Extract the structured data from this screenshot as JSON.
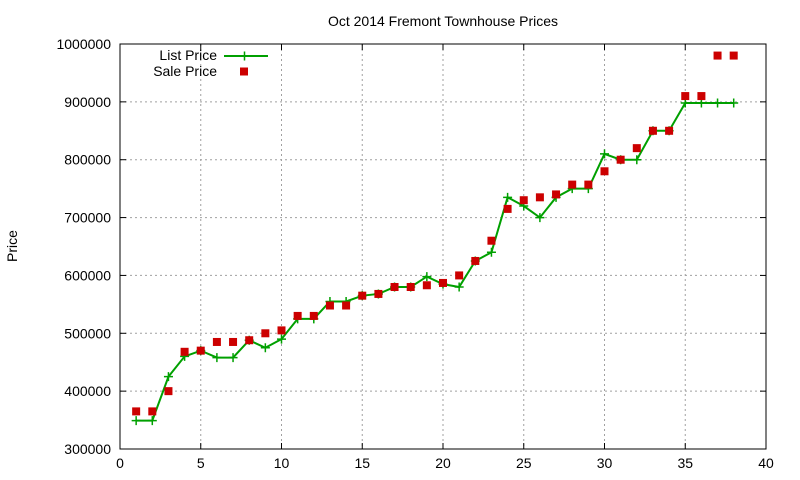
{
  "chart_data": {
    "type": "line",
    "title": "Oct 2014 Fremont Townhouse Prices",
    "xlabel": "",
    "ylabel": "Price",
    "xlim": [
      0,
      40
    ],
    "ylim": [
      300000,
      1000000
    ],
    "xticks": [
      0,
      5,
      10,
      15,
      20,
      25,
      30,
      35,
      40
    ],
    "yticks": [
      300000,
      400000,
      500000,
      600000,
      700000,
      800000,
      900000,
      1000000
    ],
    "grid": true,
    "legend_position": "top-left",
    "series": [
      {
        "name": "List Price",
        "style": "line with plus markers",
        "color": "#00a000",
        "x": [
          1,
          2,
          3,
          4,
          5,
          6,
          7,
          8,
          9,
          10,
          11,
          12,
          13,
          14,
          15,
          16,
          17,
          18,
          19,
          20,
          21,
          22,
          23,
          24,
          25,
          26,
          27,
          28,
          29,
          30,
          31,
          32,
          33,
          34,
          35,
          36,
          37,
          38
        ],
        "y": [
          349000,
          349000,
          425000,
          460000,
          470000,
          458000,
          458000,
          488000,
          475000,
          490000,
          525000,
          525000,
          555000,
          555000,
          565000,
          568000,
          580000,
          580000,
          598000,
          585000,
          580000,
          625000,
          640000,
          735000,
          720000,
          700000,
          735000,
          750000,
          750000,
          810000,
          800000,
          800000,
          850000,
          850000,
          898000,
          898000,
          898000,
          898000
        ]
      },
      {
        "name": "Sale Price",
        "style": "square markers",
        "color": "#cc0000",
        "x": [
          1,
          2,
          3,
          4,
          5,
          6,
          7,
          8,
          9,
          10,
          11,
          12,
          13,
          14,
          15,
          16,
          17,
          18,
          19,
          20,
          21,
          22,
          23,
          24,
          25,
          26,
          27,
          28,
          29,
          30,
          31,
          32,
          33,
          34,
          35,
          36,
          37,
          38
        ],
        "y": [
          365000,
          365000,
          400000,
          468000,
          470000,
          485000,
          485000,
          488000,
          500000,
          505000,
          530000,
          530000,
          548000,
          548000,
          565000,
          568000,
          580000,
          580000,
          583000,
          587000,
          600000,
          625000,
          660000,
          715000,
          730000,
          735000,
          740000,
          757000,
          757000,
          780000,
          800000,
          820000,
          850000,
          850000,
          910000,
          910000,
          980000,
          980000
        ]
      }
    ]
  }
}
